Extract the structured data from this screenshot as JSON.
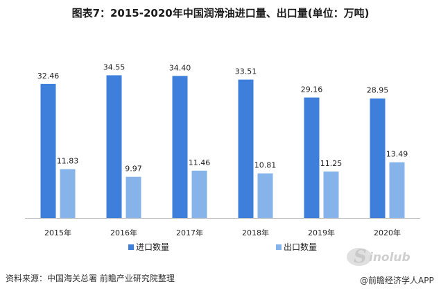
{
  "title": "图表7：2015-2020年中国润滑油进口量、出口量(单位：万吨)",
  "source": "资料来源：中国海关总署 前瞻产业研究院整理",
  "watermark": "@前瞻经济学人APP",
  "colors": {
    "import": "#3f7fdc",
    "export": "#86b4ea",
    "axis": "#bfbfbf"
  },
  "chart_data": {
    "type": "bar",
    "categories": [
      "2015年",
      "2016年",
      "2017年",
      "2018年",
      "2019年",
      "2020年"
    ],
    "series": [
      {
        "name": "进口数量",
        "values": [
          32.46,
          34.55,
          34.4,
          33.51,
          29.16,
          28.95
        ]
      },
      {
        "name": "出口数量",
        "values": [
          11.83,
          9.97,
          11.46,
          10.81,
          11.25,
          13.49
        ]
      }
    ],
    "ylim": [
      0,
      40
    ],
    "grid": false,
    "legend_position": "bottom",
    "xlabel": "",
    "ylabel": ""
  }
}
